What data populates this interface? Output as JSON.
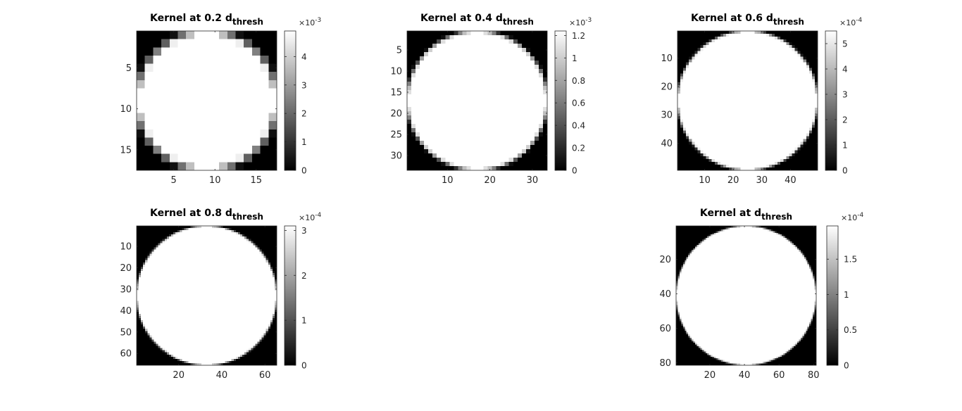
{
  "chart_data": [
    {
      "type": "heatmap",
      "title": {
        "main": "Kernel at 0.2 d",
        "sub": "thresh"
      },
      "grid_size": 17,
      "xticks": [
        5,
        10,
        15
      ],
      "yticks": [
        5,
        10,
        15
      ],
      "colorbar": {
        "ticks": [
          0,
          1,
          2,
          3,
          4
        ],
        "labels": [
          "0",
          "1",
          "2",
          "3",
          "4"
        ],
        "max": 4.9,
        "exponent_base": "×10",
        "exponent": "-3"
      },
      "colormap": "gray",
      "description": "disk kernel"
    },
    {
      "type": "heatmap",
      "title": {
        "main": "Kernel at 0.4 d",
        "sub": "thresh"
      },
      "grid_size": 33,
      "xticks": [
        10,
        20,
        30
      ],
      "yticks": [
        5,
        10,
        15,
        20,
        25,
        30
      ],
      "colorbar": {
        "ticks": [
          0,
          0.2,
          0.4,
          0.6,
          0.8,
          1,
          1.2
        ],
        "labels": [
          "0",
          "0.2",
          "0.4",
          "0.6",
          "0.8",
          "1",
          "1.2"
        ],
        "max": 1.24,
        "exponent_base": "×10",
        "exponent": "-3"
      },
      "colormap": "gray",
      "description": "disk kernel"
    },
    {
      "type": "heatmap",
      "title": {
        "main": "Kernel at 0.6 d",
        "sub": "thresh"
      },
      "grid_size": 49,
      "xticks": [
        10,
        20,
        30,
        40
      ],
      "yticks": [
        10,
        20,
        30,
        40
      ],
      "colorbar": {
        "ticks": [
          0,
          1,
          2,
          3,
          4,
          5
        ],
        "labels": [
          "0",
          "1",
          "2",
          "3",
          "4",
          "5"
        ],
        "max": 5.5,
        "exponent_base": "×10",
        "exponent": "-4"
      },
      "colormap": "gray",
      "description": "disk kernel"
    },
    {
      "type": "heatmap",
      "title": {
        "main": "Kernel at 0.8 d",
        "sub": "thresh"
      },
      "grid_size": 65,
      "xticks": [
        20,
        40,
        60
      ],
      "yticks": [
        10,
        20,
        30,
        40,
        50,
        60
      ],
      "colorbar": {
        "ticks": [
          0,
          1,
          2,
          3
        ],
        "labels": [
          "0",
          "1",
          "2",
          "3"
        ],
        "max": 3.1,
        "exponent_base": "×10",
        "exponent": "-4"
      },
      "colormap": "gray",
      "description": "disk kernel"
    },
    {
      "type": "heatmap",
      "title": {
        "main": "Kernel at d",
        "sub": "thresh"
      },
      "grid_size": 81,
      "xticks": [
        20,
        40,
        60,
        80
      ],
      "yticks": [
        20,
        40,
        60,
        80
      ],
      "colorbar": {
        "ticks": [
          0,
          0.5,
          1,
          1.5
        ],
        "labels": [
          "0",
          "0.5",
          "1",
          "1.5"
        ],
        "max": 1.97,
        "exponent_base": "×10",
        "exponent": "-4"
      },
      "colormap": "gray",
      "description": "disk kernel"
    }
  ]
}
